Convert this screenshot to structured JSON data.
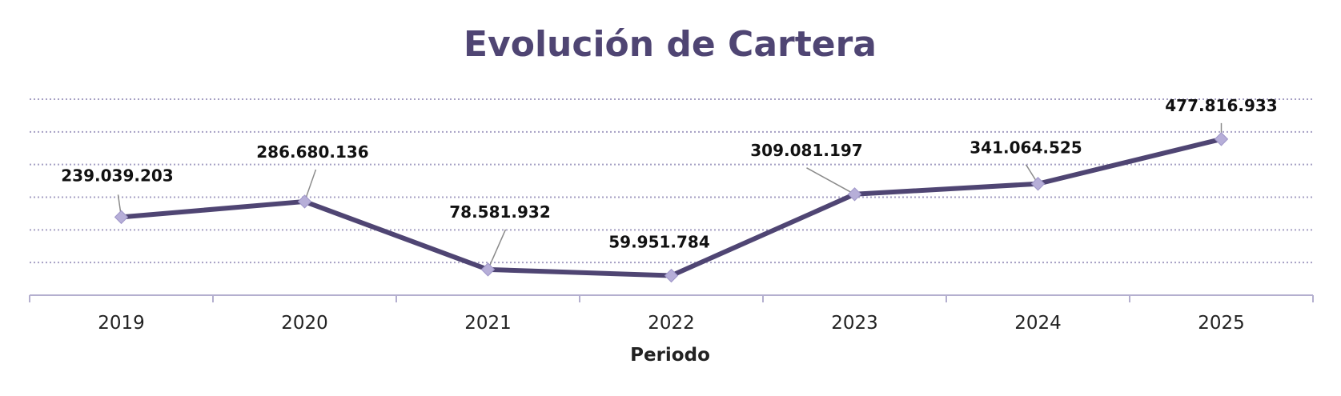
{
  "chart_data": {
    "type": "line",
    "title": "Evolución de Cartera",
    "xlabel": "Periodo",
    "ylabel": "",
    "categories": [
      "2019",
      "2020",
      "2021",
      "2022",
      "2023",
      "2024",
      "2025"
    ],
    "series": [
      {
        "name": "Cartera",
        "values": [
          239039203,
          286680136,
          78581932,
          59951784,
          309081197,
          341064525,
          477816933
        ],
        "labels": [
          "239.039.203",
          "286.680.136",
          "78.581.932",
          "59.951.784",
          "309.081.197",
          "341.064.525",
          "477.816.933"
        ]
      }
    ],
    "ylim": [
      0,
      600000000
    ],
    "yticks_gridlines": 6,
    "grid": true,
    "legend": "none",
    "colors": {
      "title": "#4f4573",
      "line": "#4f4573",
      "marker": "#b6aed8",
      "grid": "#a59fc3",
      "axis": "#b4afcf"
    }
  }
}
